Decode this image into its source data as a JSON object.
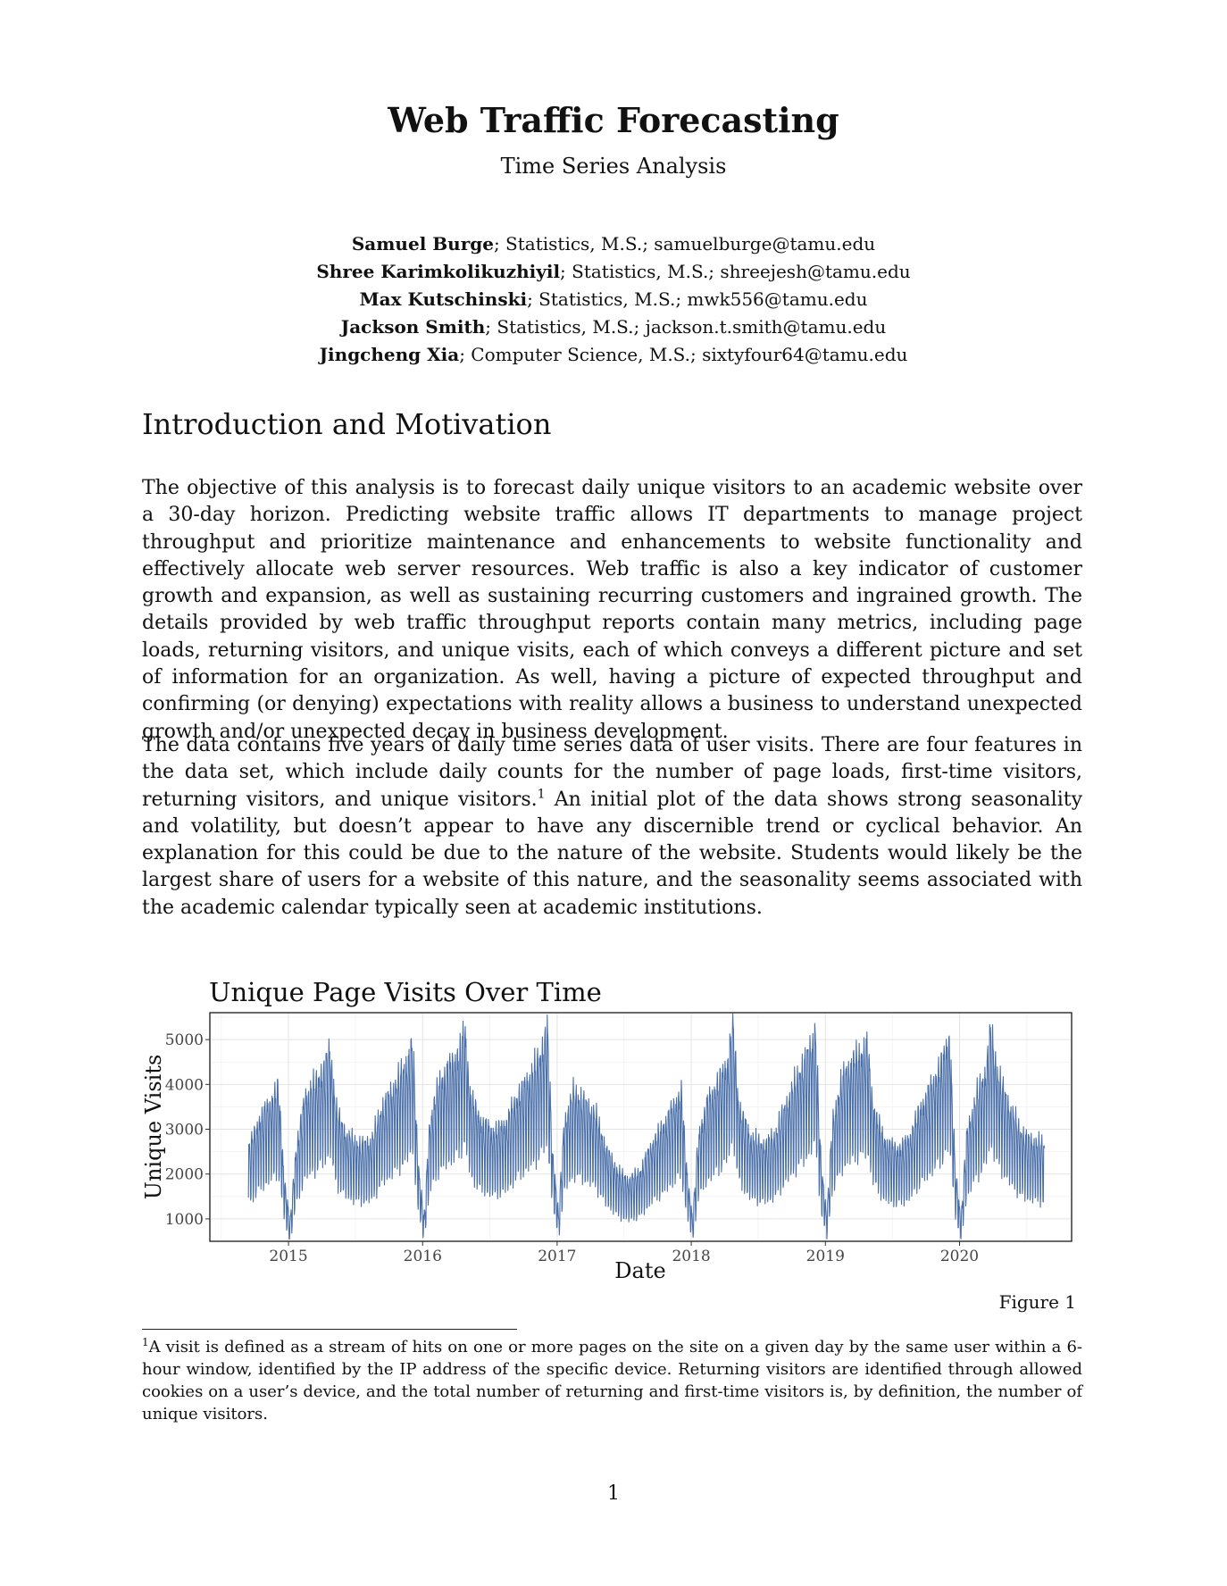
{
  "paper": {
    "title": "Web Traffic Forecasting",
    "subtitle": "Time Series Analysis",
    "authors": [
      {
        "name": "Samuel Burge",
        "details": "; Statistics, M.S.; samuelburge@tamu.edu"
      },
      {
        "name": "Shree Karimkolikuzhiyil",
        "details": "; Statistics, M.S.; shreejesh@tamu.edu"
      },
      {
        "name": "Max Kutschinski",
        "details": "; Statistics, M.S.; mwk556@tamu.edu"
      },
      {
        "name": "Jackson Smith",
        "details": "; Statistics, M.S.; jackson.t.smith@tamu.edu"
      },
      {
        "name": "Jingcheng Xia",
        "details": "; Computer Science, M.S.; sixtyfour64@tamu.edu"
      }
    ],
    "section_heading": "Introduction and Motivation",
    "paragraph1": "The objective of this analysis is to forecast daily unique visitors to an academic website over a 30-day horizon. Predicting website traffic allows IT departments to manage project throughput and prioritize maintenance and enhancements to website functionality and effectively allocate web server resources. Web traffic is also a key indicator of customer growth and expansion, as well as sustaining recurring customers and ingrained growth. The details provided by web traffic throughput reports contain many metrics, including page loads, returning visitors, and unique visits, each of which conveys a different picture and set of information for an organization. As well, having a picture of expected throughput and confirming (or denying) expectations with reality allows a business to understand unexpected growth and/or unexpected decay in business development.",
    "paragraph2_before": "The data contains five years of daily time series data of user visits. There are four features in the data set, which include daily counts for the number of page loads, first-time visitors, returning visitors, and unique visitors.",
    "footnote_mark": "1",
    "paragraph2_after": " An initial plot of the data shows strong seasonality and volatility, but doesn’t appear to have any discernible trend or cyclical behavior. An explanation for this could be due to the nature of the website. Students would likely be the largest share of users for a website of this nature, and the seasonality seems associated with the academic calendar typically seen at academic institutions.",
    "figure_caption": "Figure 1",
    "footnote_text": "A visit is defined as a stream of hits on one or more pages on the site on a given day by the same user within a 6-hour window, identified by the IP address of the specific device. Returning visitors are identified through allowed cookies on a user’s device, and the total number of returning and first-time visitors is, by definition, the number of unique visitors.",
    "page_number": "1"
  },
  "chart_data": {
    "type": "line",
    "title": "Unique Page Visits Over Time",
    "xlabel": "Date",
    "ylabel": "Unique Visits",
    "xlim": [
      "2014-06-01",
      "2020-11-01"
    ],
    "ylim": [
      500,
      5600
    ],
    "x_ticks": [
      "2015",
      "2016",
      "2017",
      "2018",
      "2019",
      "2020"
    ],
    "y_ticks": [
      1000,
      2000,
      3000,
      4000,
      5000
    ],
    "grid": true,
    "line_color": "#4a6fa8",
    "series": [
      {
        "frequency": "daily, with a weekly cycle; value listed is the approximate weekday peak, the weekend trough is roughly 40-50% lower",
        "x_start": "2014-09-14",
        "x_end": "2020-08-19",
        "smoothed_weekly_peaks": [
          [
            "2014-09-14",
            2600
          ],
          [
            "2014-10-15",
            3300
          ],
          [
            "2014-11-15",
            3700
          ],
          [
            "2014-12-05",
            4000
          ],
          [
            "2014-12-20",
            2000
          ],
          [
            "2015-01-05",
            900
          ],
          [
            "2015-01-20",
            2500
          ],
          [
            "2015-02-15",
            3800
          ],
          [
            "2015-03-15",
            4100
          ],
          [
            "2015-04-10",
            4500
          ],
          [
            "2015-04-25",
            4900
          ],
          [
            "2015-05-10",
            3500
          ],
          [
            "2015-06-10",
            2900
          ],
          [
            "2015-07-15",
            2700
          ],
          [
            "2015-08-15",
            2800
          ],
          [
            "2015-09-15",
            3600
          ],
          [
            "2015-10-15",
            4000
          ],
          [
            "2015-11-15",
            4500
          ],
          [
            "2015-12-05",
            5000
          ],
          [
            "2015-12-20",
            2300
          ],
          [
            "2016-01-05",
            1000
          ],
          [
            "2016-01-20",
            3200
          ],
          [
            "2016-02-15",
            4100
          ],
          [
            "2016-03-15",
            4500
          ],
          [
            "2016-04-10",
            4800
          ],
          [
            "2016-04-25",
            5350
          ],
          [
            "2016-05-10",
            3800
          ],
          [
            "2016-06-10",
            3200
          ],
          [
            "2016-07-15",
            3000
          ],
          [
            "2016-08-15",
            3200
          ],
          [
            "2016-09-15",
            3800
          ],
          [
            "2016-10-15",
            4200
          ],
          [
            "2016-11-15",
            4700
          ],
          [
            "2016-12-05",
            5400
          ],
          [
            "2016-12-20",
            2500
          ],
          [
            "2017-01-05",
            1100
          ],
          [
            "2017-01-20",
            3200
          ],
          [
            "2017-02-15",
            3900
          ],
          [
            "2017-03-15",
            3700
          ],
          [
            "2017-04-15",
            3400
          ],
          [
            "2017-05-15",
            2600
          ],
          [
            "2017-06-15",
            2100
          ],
          [
            "2017-07-15",
            1900
          ],
          [
            "2017-08-15",
            2100
          ],
          [
            "2017-09-15",
            2700
          ],
          [
            "2017-10-15",
            3100
          ],
          [
            "2017-11-15",
            3600
          ],
          [
            "2017-12-05",
            3900
          ],
          [
            "2017-12-20",
            2100
          ],
          [
            "2018-01-05",
            1000
          ],
          [
            "2018-01-20",
            2900
          ],
          [
            "2018-02-15",
            3700
          ],
          [
            "2018-03-15",
            4100
          ],
          [
            "2018-04-10",
            4600
          ],
          [
            "2018-04-25",
            5500
          ],
          [
            "2018-05-10",
            3600
          ],
          [
            "2018-06-10",
            2900
          ],
          [
            "2018-07-15",
            2700
          ],
          [
            "2018-08-15",
            2900
          ],
          [
            "2018-09-15",
            3600
          ],
          [
            "2018-10-15",
            4200
          ],
          [
            "2018-11-15",
            4800
          ],
          [
            "2018-12-05",
            5300
          ],
          [
            "2018-12-20",
            2300
          ],
          [
            "2019-01-05",
            1100
          ],
          [
            "2019-01-20",
            3200
          ],
          [
            "2019-02-15",
            4200
          ],
          [
            "2019-03-15",
            4600
          ],
          [
            "2019-04-10",
            4800
          ],
          [
            "2019-04-25",
            5000
          ],
          [
            "2019-05-10",
            3600
          ],
          [
            "2019-06-10",
            2800
          ],
          [
            "2019-07-15",
            2600
          ],
          [
            "2019-08-15",
            2800
          ],
          [
            "2019-09-15",
            3500
          ],
          [
            "2019-10-15",
            4000
          ],
          [
            "2019-11-15",
            4600
          ],
          [
            "2019-12-05",
            5200
          ],
          [
            "2019-12-20",
            2200
          ],
          [
            "2020-01-05",
            1000
          ],
          [
            "2020-01-20",
            2900
          ],
          [
            "2020-02-15",
            3800
          ],
          [
            "2020-03-10",
            4300
          ],
          [
            "2020-03-25",
            5300
          ],
          [
            "2020-04-15",
            4300
          ],
          [
            "2020-05-15",
            3600
          ],
          [
            "2020-06-15",
            3000
          ],
          [
            "2020-07-15",
            2800
          ],
          [
            "2020-08-19",
            2700
          ]
        ]
      }
    ]
  }
}
